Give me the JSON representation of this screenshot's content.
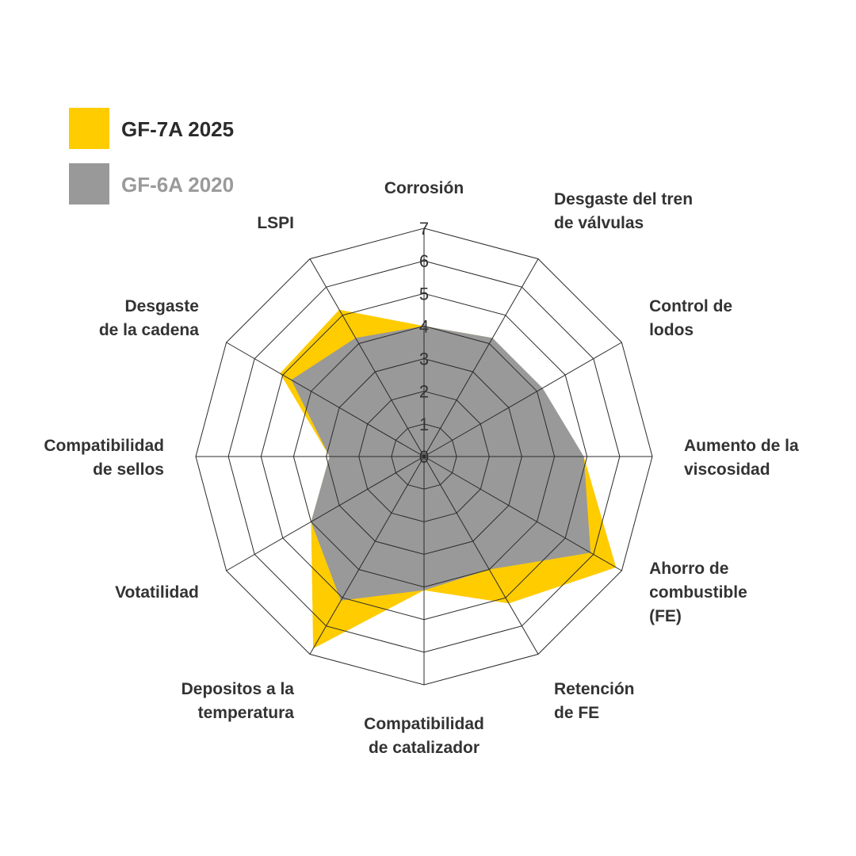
{
  "chart_data": {
    "type": "radar",
    "title": "",
    "axes": [
      "Corrosión",
      "Desgaste del tren de válvulas",
      "Control de lodos",
      "Aumento de la viscosidad",
      "Ahorro de combustible (FE)",
      "Retención de FE",
      "Compatibilidad de catalizador",
      "Depositos a la temperatura",
      "Votatilidad",
      "Compatibilidad de sellos",
      "Desgaste de la cadena",
      "LSPI"
    ],
    "axis_label_lines": [
      [
        "Corrosión"
      ],
      [
        "Desgaste del tren",
        "de válvulas"
      ],
      [
        "Control de",
        "lodos"
      ],
      [
        "Aumento de la",
        "viscosidad"
      ],
      [
        "Ahorro de",
        "combustible",
        "(FE)"
      ],
      [
        "Retención",
        "de FE"
      ],
      [
        "Compatibilidad",
        "de catalizador"
      ],
      [
        "Depositos a la",
        "temperatura"
      ],
      [
        "Votatilidad"
      ],
      [
        "Compatibilidad",
        "de sellos"
      ],
      [
        "Desgaste",
        "de la cadena"
      ],
      [
        "LSPI"
      ]
    ],
    "ticks": [
      "0",
      "1",
      "2",
      "3",
      "4",
      "5",
      "6",
      "7"
    ],
    "rmax": 7,
    "legend_position": "top-left",
    "series": [
      {
        "name": "GF-7A 2025",
        "color": "#FFCC00",
        "values": [
          4,
          4.2,
          2,
          4.9,
          6.8,
          5.2,
          4.1,
          6.8,
          4,
          2.9,
          5.1,
          5.2
        ]
      },
      {
        "name": "GF-6A 2020",
        "color": "#999999",
        "values": [
          4,
          4.2,
          4.2,
          4.9,
          5.9,
          4,
          4.1,
          5.1,
          4,
          2.9,
          4.7,
          4.2
        ]
      }
    ]
  }
}
